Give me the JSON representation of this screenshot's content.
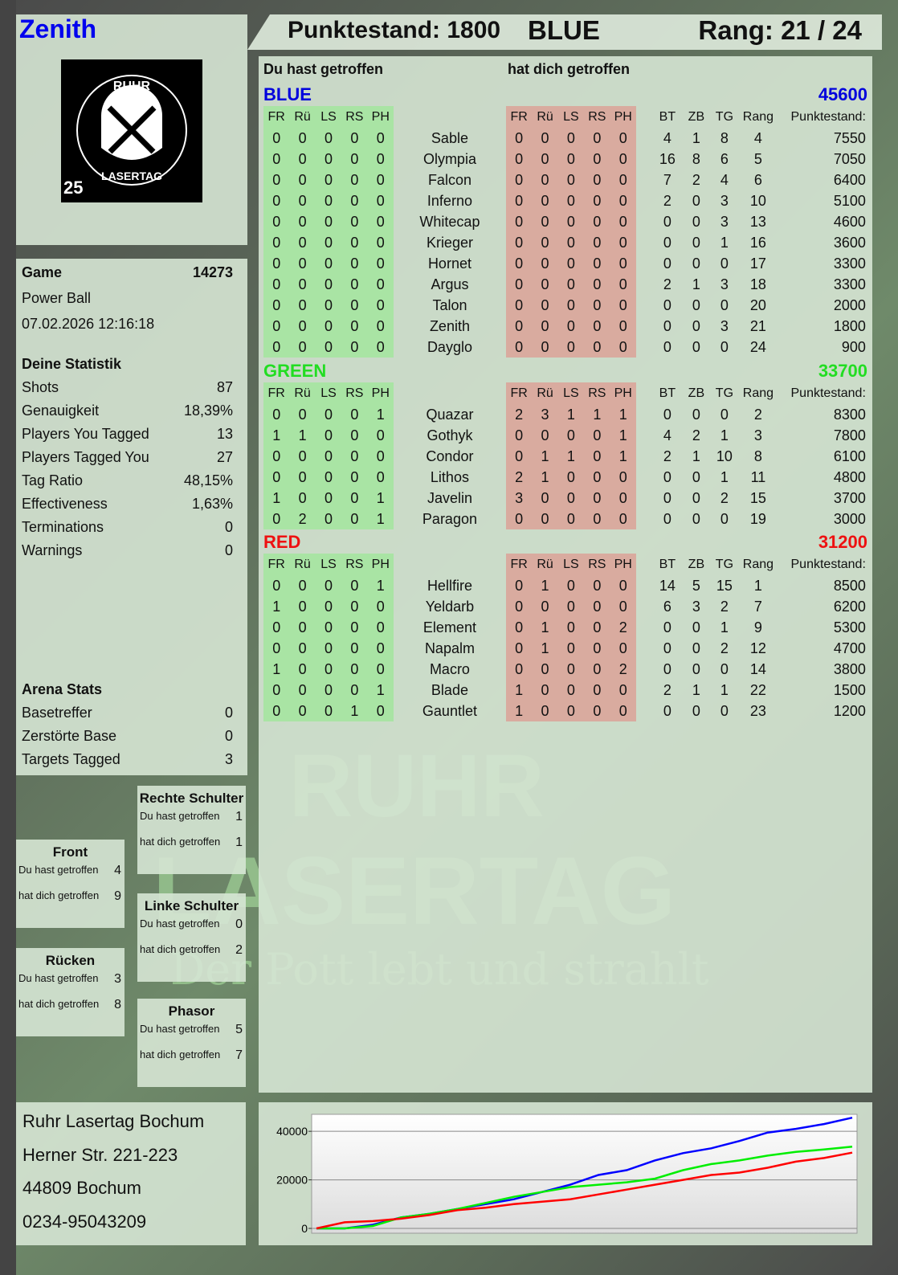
{
  "player": {
    "name": "Zenith",
    "score_label": "Punktestand: 1800",
    "team": "BLUE",
    "rank_label": "Rang: 21 / 24",
    "name_color": "#0000ee"
  },
  "logo": {
    "text_top": "RUHR",
    "text_bottom": "LASERTAG",
    "badge": "25"
  },
  "watermark": {
    "line1": "RUHR",
    "line2": "LASERTAG",
    "slogan": "Der Pott lebt und strahlt"
  },
  "game": {
    "label": "Game",
    "id": "14273",
    "mode": "Power Ball",
    "datetime": "07.02.2026 12:16:18"
  },
  "stats": {
    "title": "Deine Statistik",
    "items": [
      {
        "label": "Shots",
        "value": "87"
      },
      {
        "label": "Genauigkeit",
        "value": "18,39%"
      },
      {
        "label": "Players You Tagged",
        "value": "13"
      },
      {
        "label": "Players Tagged You",
        "value": "27"
      },
      {
        "label": "Tag Ratio",
        "value": "48,15%"
      },
      {
        "label": "Effectiveness",
        "value": "1,63%"
      },
      {
        "label": "Terminations",
        "value": "0"
      },
      {
        "label": "Warnings",
        "value": "0"
      }
    ]
  },
  "arena": {
    "title": "Arena Stats",
    "items": [
      {
        "label": "Basetreffer",
        "value": "0"
      },
      {
        "label": "Zerstörte Base",
        "value": "0"
      },
      {
        "label": "Targets Tagged",
        "value": "3"
      }
    ]
  },
  "hits": {
    "hit_label": "Du hast getroffen",
    "got_label": "hat dich getroffen",
    "zones": [
      {
        "name": "Front",
        "hit": "4",
        "got": "9"
      },
      {
        "name": "Rücken",
        "hit": "3",
        "got": "8"
      },
      {
        "name": "Rechte Schulter",
        "hit": "1",
        "got": "1"
      },
      {
        "name": "Linke Schulter",
        "hit": "0",
        "got": "2"
      },
      {
        "name": "Phasor",
        "hit": "5",
        "got": "7"
      }
    ]
  },
  "main": {
    "hit_heading": "Du hast getroffen",
    "got_heading": "hat dich getroffen",
    "columns": {
      "zones": [
        "FR",
        "Rü",
        "LS",
        "RS",
        "PH"
      ],
      "extra": [
        "BT",
        "ZB",
        "TG",
        "Rang",
        "Punktestand:"
      ]
    },
    "teams": [
      {
        "name": "BLUE",
        "score": "45600",
        "color": "#0000dd",
        "players": [
          [
            "Sable",
            [
              0,
              0,
              0,
              0,
              0
            ],
            [
              0,
              0,
              0,
              0,
              0
            ],
            [
              4,
              1,
              8,
              4
            ],
            7550
          ],
          [
            "Olympia",
            [
              0,
              0,
              0,
              0,
              0
            ],
            [
              0,
              0,
              0,
              0,
              0
            ],
            [
              16,
              8,
              6,
              5
            ],
            7050
          ],
          [
            "Falcon",
            [
              0,
              0,
              0,
              0,
              0
            ],
            [
              0,
              0,
              0,
              0,
              0
            ],
            [
              7,
              2,
              4,
              6
            ],
            6400
          ],
          [
            "Inferno",
            [
              0,
              0,
              0,
              0,
              0
            ],
            [
              0,
              0,
              0,
              0,
              0
            ],
            [
              2,
              0,
              3,
              10
            ],
            5100
          ],
          [
            "Whitecap",
            [
              0,
              0,
              0,
              0,
              0
            ],
            [
              0,
              0,
              0,
              0,
              0
            ],
            [
              0,
              0,
              3,
              13
            ],
            4600
          ],
          [
            "Krieger",
            [
              0,
              0,
              0,
              0,
              0
            ],
            [
              0,
              0,
              0,
              0,
              0
            ],
            [
              0,
              0,
              1,
              16
            ],
            3600
          ],
          [
            "Hornet",
            [
              0,
              0,
              0,
              0,
              0
            ],
            [
              0,
              0,
              0,
              0,
              0
            ],
            [
              0,
              0,
              0,
              17
            ],
            3300
          ],
          [
            "Argus",
            [
              0,
              0,
              0,
              0,
              0
            ],
            [
              0,
              0,
              0,
              0,
              0
            ],
            [
              2,
              1,
              3,
              18
            ],
            3300
          ],
          [
            "Talon",
            [
              0,
              0,
              0,
              0,
              0
            ],
            [
              0,
              0,
              0,
              0,
              0
            ],
            [
              0,
              0,
              0,
              20
            ],
            2000
          ],
          [
            "Zenith",
            [
              0,
              0,
              0,
              0,
              0
            ],
            [
              0,
              0,
              0,
              0,
              0
            ],
            [
              0,
              0,
              3,
              21
            ],
            1800
          ],
          [
            "Dayglo",
            [
              0,
              0,
              0,
              0,
              0
            ],
            [
              0,
              0,
              0,
              0,
              0
            ],
            [
              0,
              0,
              0,
              24
            ],
            900
          ]
        ]
      },
      {
        "name": "GREEN",
        "score": "33700",
        "color": "#22dd22",
        "players": [
          [
            "Quazar",
            [
              0,
              0,
              0,
              0,
              1
            ],
            [
              2,
              3,
              1,
              1,
              1
            ],
            [
              0,
              0,
              0,
              2
            ],
            8300
          ],
          [
            "Gothyk",
            [
              1,
              1,
              0,
              0,
              0
            ],
            [
              0,
              0,
              0,
              0,
              1
            ],
            [
              4,
              2,
              1,
              3
            ],
            7800
          ],
          [
            "Condor",
            [
              0,
              0,
              0,
              0,
              0
            ],
            [
              0,
              1,
              1,
              0,
              1
            ],
            [
              2,
              1,
              10,
              8
            ],
            6100
          ],
          [
            "Lithos",
            [
              0,
              0,
              0,
              0,
              0
            ],
            [
              2,
              1,
              0,
              0,
              0
            ],
            [
              0,
              0,
              1,
              11
            ],
            4800
          ],
          [
            "Javelin",
            [
              1,
              0,
              0,
              0,
              1
            ],
            [
              3,
              0,
              0,
              0,
              0
            ],
            [
              0,
              0,
              2,
              15
            ],
            3700
          ],
          [
            "Paragon",
            [
              0,
              2,
              0,
              0,
              1
            ],
            [
              0,
              0,
              0,
              0,
              0
            ],
            [
              0,
              0,
              0,
              19
            ],
            3000
          ]
        ]
      },
      {
        "name": "RED",
        "score": "31200",
        "color": "#ee1111",
        "players": [
          [
            "Hellfire",
            [
              0,
              0,
              0,
              0,
              1
            ],
            [
              0,
              1,
              0,
              0,
              0
            ],
            [
              14,
              5,
              15,
              1
            ],
            8500
          ],
          [
            "Yeldarb",
            [
              1,
              0,
              0,
              0,
              0
            ],
            [
              0,
              0,
              0,
              0,
              0
            ],
            [
              6,
              3,
              2,
              7
            ],
            6200
          ],
          [
            "Element",
            [
              0,
              0,
              0,
              0,
              0
            ],
            [
              0,
              1,
              0,
              0,
              2
            ],
            [
              0,
              0,
              1,
              9
            ],
            5300
          ],
          [
            "Napalm",
            [
              0,
              0,
              0,
              0,
              0
            ],
            [
              0,
              1,
              0,
              0,
              0
            ],
            [
              0,
              0,
              2,
              12
            ],
            4700
          ],
          [
            "Macro",
            [
              1,
              0,
              0,
              0,
              0
            ],
            [
              0,
              0,
              0,
              0,
              2
            ],
            [
              0,
              0,
              0,
              14
            ],
            3800
          ],
          [
            "Blade",
            [
              0,
              0,
              0,
              0,
              1
            ],
            [
              1,
              0,
              0,
              0,
              0
            ],
            [
              2,
              1,
              1,
              22
            ],
            1500
          ],
          [
            "Gauntlet",
            [
              0,
              0,
              0,
              1,
              0
            ],
            [
              1,
              0,
              0,
              0,
              0
            ],
            [
              0,
              0,
              0,
              23
            ],
            1200
          ]
        ]
      }
    ]
  },
  "address": [
    "Ruhr Lasertag Bochum",
    "Herner Str. 221-223",
    "44809 Bochum",
    "0234-95043209"
  ],
  "chart_data": {
    "type": "line",
    "title": "",
    "xlabel": "",
    "ylabel": "",
    "ylim": [
      0,
      47000
    ],
    "yticks": [
      "0",
      "20000",
      "40000"
    ],
    "grid": true,
    "series": [
      {
        "color": "#0000ff",
        "values": [
          0,
          0,
          1500,
          4500,
          6000,
          8000,
          10000,
          12000,
          15000,
          18000,
          22000,
          24000,
          28000,
          31000,
          33000,
          36000,
          39500,
          41000,
          43000,
          45600
        ]
      },
      {
        "color": "#00ee00",
        "values": [
          0,
          0,
          1000,
          4500,
          6000,
          8000,
          10500,
          13000,
          15000,
          17000,
          18000,
          19000,
          20500,
          24000,
          26500,
          28000,
          30000,
          31500,
          32500,
          33700
        ]
      },
      {
        "color": "#ff0000",
        "values": [
          0,
          2500,
          3000,
          4000,
          5500,
          7500,
          8500,
          10000,
          11000,
          12000,
          14000,
          16000,
          18000,
          20000,
          22000,
          23000,
          25000,
          27500,
          29000,
          31200
        ]
      }
    ]
  }
}
